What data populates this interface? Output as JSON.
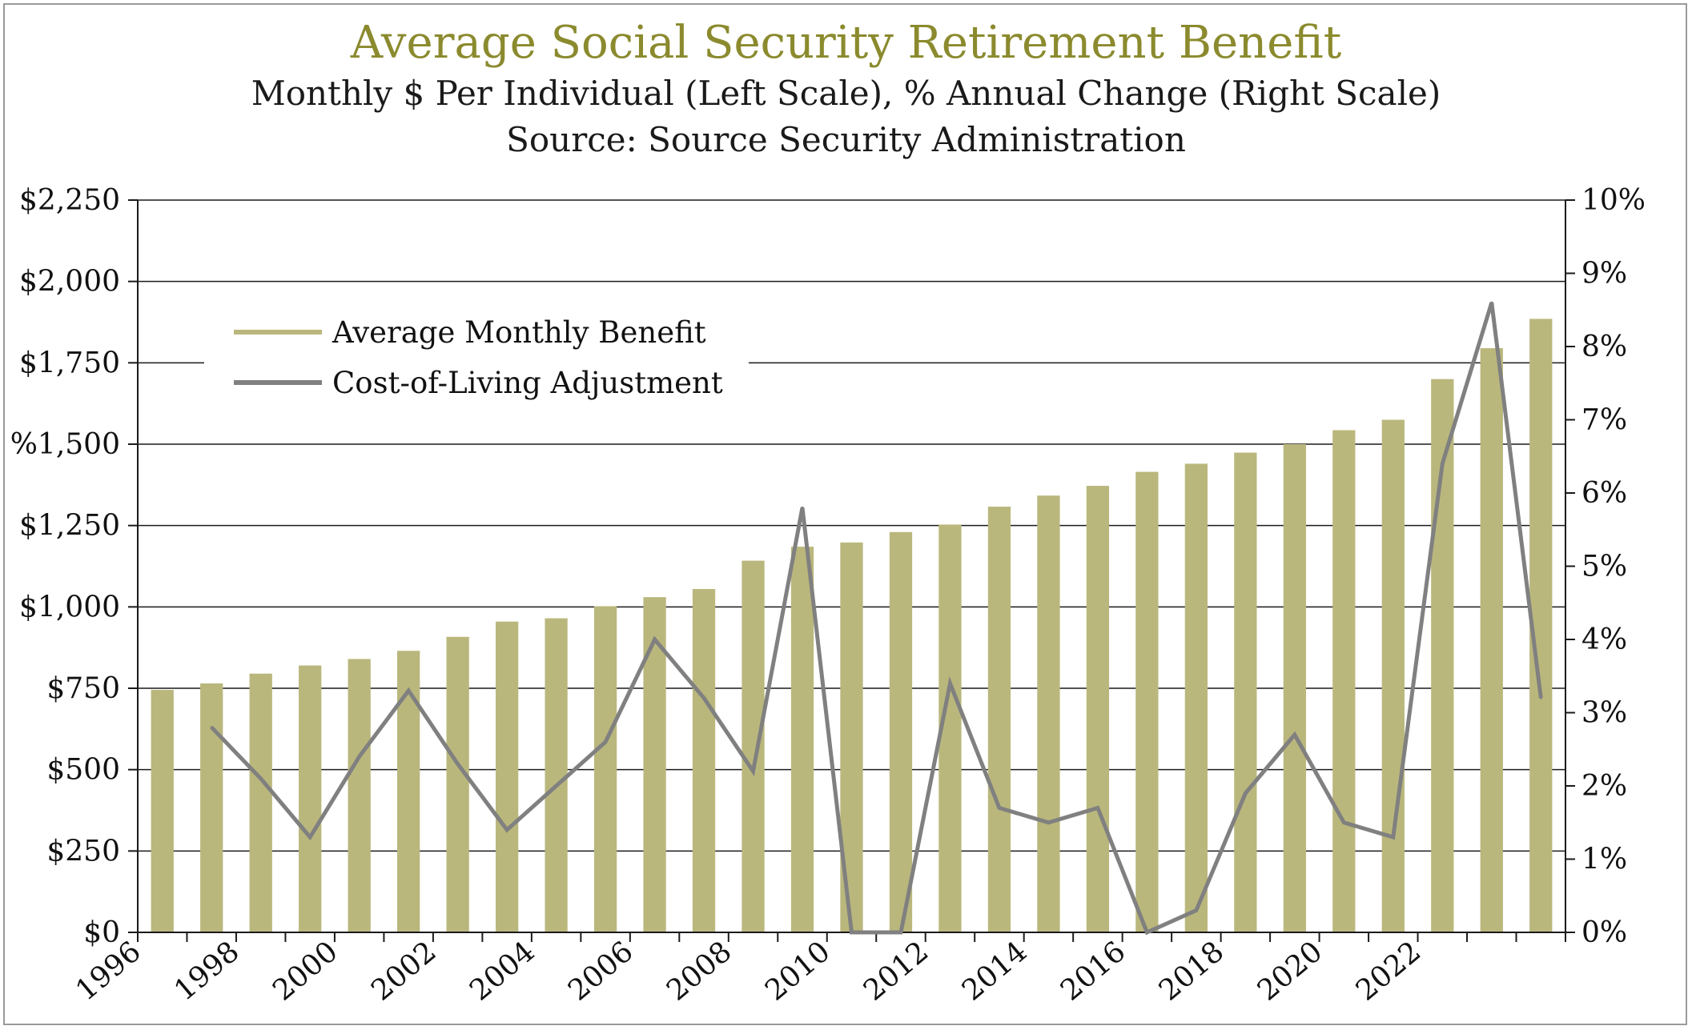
{
  "chart_data": {
    "type": "bar",
    "title": "Average Social Security Retirement Benefit",
    "subtitle": "Monthly $ Per Individual (Left Scale), % Annual Change (Right Scale)",
    "source": "Source: Source Security Administration",
    "categories": [
      "1996",
      "1997",
      "1998",
      "1999",
      "2000",
      "2001",
      "2002",
      "2003",
      "2004",
      "2005",
      "2006",
      "2007",
      "2008",
      "2009",
      "2010",
      "2011",
      "2012",
      "2013",
      "2014",
      "2015",
      "2016",
      "2017",
      "2018",
      "2019",
      "2020",
      "2021",
      "2022",
      "2023",
      "2024"
    ],
    "x_tick_labels": [
      "1996",
      "1998",
      "2000",
      "2002",
      "2004",
      "2006",
      "2008",
      "2010",
      "2012",
      "2014",
      "2016",
      "2018",
      "2020",
      "2022"
    ],
    "y_left": {
      "ylim": [
        0,
        2250
      ],
      "tick_labels": [
        "$0",
        "$250",
        "$500",
        "$750",
        "$1,000",
        "$1,250",
        "%1,500",
        "$1,750",
        "$2,000",
        "$2,250"
      ]
    },
    "y_right": {
      "ylim": [
        0,
        10
      ],
      "tick_labels": [
        "0%",
        "1%",
        "2%",
        "3%",
        "4%",
        "5%",
        "6%",
        "7%",
        "8%",
        "9%",
        "10%"
      ]
    },
    "grid": true,
    "legend_position": "top-left",
    "series": [
      {
        "name": "Average Monthly Benefit",
        "type": "bar",
        "axis": "left",
        "color": "#bab77d",
        "values": [
          745,
          765,
          795,
          820,
          840,
          865,
          908,
          955,
          965,
          1002,
          1030,
          1055,
          1142,
          1185,
          1198,
          1230,
          1253,
          1308,
          1342,
          1372,
          1415,
          1440,
          1474,
          1500,
          1543,
          1575,
          1700,
          1795,
          1885
        ]
      },
      {
        "name": "Cost-of-Living Adjustment",
        "type": "line",
        "axis": "right",
        "color": "#808080",
        "x": [
          "1997",
          "1998",
          "1999",
          "2000",
          "2001",
          "2002",
          "2003",
          "2004",
          "2005",
          "2006",
          "2007",
          "2008",
          "2009",
          "2010",
          "2011",
          "2012",
          "2013",
          "2014",
          "2015",
          "2016",
          "2017",
          "2018",
          "2019",
          "2020",
          "2021",
          "2022",
          "2023",
          "2024"
        ],
        "values": [
          2.8,
          2.1,
          1.3,
          2.4,
          3.3,
          2.3,
          1.4,
          2.0,
          2.6,
          4.0,
          3.2,
          2.2,
          5.8,
          0.0,
          0.0,
          3.4,
          1.7,
          1.5,
          1.7,
          0.0,
          0.3,
          1.9,
          2.7,
          1.5,
          1.3,
          6.4,
          8.6,
          3.2
        ]
      }
    ]
  }
}
